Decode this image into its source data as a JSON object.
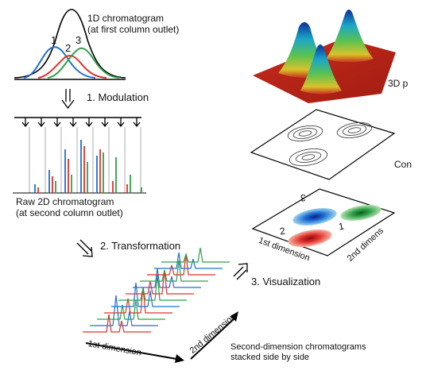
{
  "chromatogram_1d": {
    "title_line1": "1D chromatogram",
    "title_line2": "(at first column outlet)",
    "peak_labels": [
      "1",
      "2",
      "3"
    ]
  },
  "steps": {
    "modulation": "1. Modulation",
    "transformation": "2. Transformation",
    "visualization": "3. Visualization"
  },
  "raw_2d": {
    "line1": "Raw 2D chromatogram",
    "line2": "(at second column outlet)"
  },
  "stacked": {
    "axis_1": "1st dimension",
    "axis_2": "2nd dimension",
    "caption_line1": "Second-dimension chromatograms",
    "caption_line2": "stacked side by side"
  },
  "views": {
    "view_3d": "3D p",
    "view_contour": "Con",
    "plot_2d": {
      "axis_1": "1st dimension",
      "axis_2": "2nd dimens",
      "peak_labels": [
        "1",
        "2",
        "3"
      ]
    }
  },
  "colors": {
    "peak_1": "#1f6fd1",
    "peak_2": "#e0312b",
    "peak_3": "#2fa14a",
    "envelope": "#000000"
  }
}
